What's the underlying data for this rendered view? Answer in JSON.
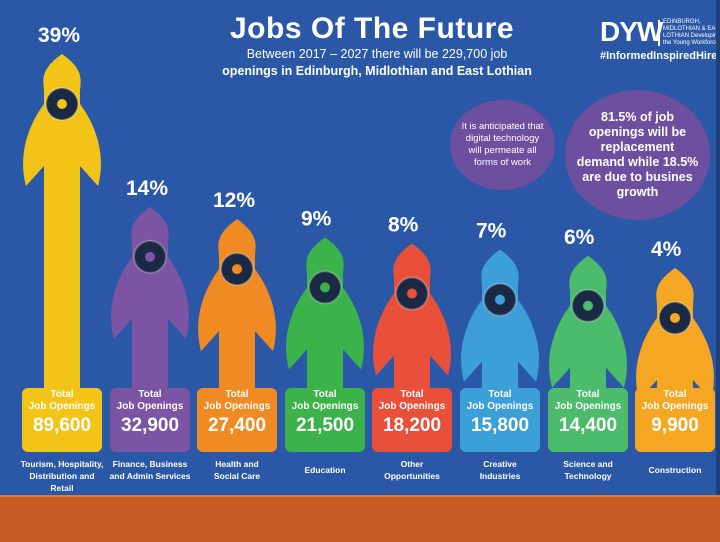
{
  "header": {
    "title": "Jobs Of The Future",
    "subtitle_line1": "Between 2017 – 2027 there will be 229,700 job",
    "subtitle_line2": "openings in Edinburgh, Midlothian and East Lothian"
  },
  "logo": {
    "mark": "DYW",
    "small_text": "EDINBURGH, MIDLOTHIAN & EAST LOTHIAN Developing the Young Workforce",
    "hashtag": "#InformedInspiredHired"
  },
  "callouts": {
    "digital": "It is anticipated that digital technology will permeate all forms of work",
    "replacement": "81.5% of job openings will be replacement demand while 18.5% are due to busines growth"
  },
  "box_caption_line1": "Total",
  "box_caption_line2": "Job Openings",
  "chart_data": {
    "type": "bar",
    "title": "Jobs Of The Future",
    "categories": [
      "Tourism, Hospitality, Distribution and Retail",
      "Finance, Business and Admin Services",
      "Health and Social Care",
      "Education",
      "Other Opportunities",
      "Creative Industries",
      "Science and Technology",
      "Construction"
    ],
    "category_lines": [
      [
        "Tourism, Hospitality,",
        "Distribution and Retail"
      ],
      [
        "Finance, Business",
        "and Admin Services"
      ],
      [
        "Health and",
        "Social Care"
      ],
      [
        "Education"
      ],
      [
        "Other",
        "Opportunities"
      ],
      [
        "Creative",
        "Industries"
      ],
      [
        "Science and",
        "Technology"
      ],
      [
        "Construction"
      ]
    ],
    "percent_labels": [
      "39%",
      "14%",
      "12%",
      "9%",
      "8%",
      "7%",
      "6%",
      "4%"
    ],
    "percent_values": [
      39,
      14,
      12,
      9,
      8,
      7,
      6,
      4
    ],
    "job_opening_labels": [
      "89,600",
      "32,900",
      "27,400",
      "21,500",
      "18,200",
      "15,800",
      "14,400",
      "9,900"
    ],
    "job_openings": [
      89600,
      32900,
      27400,
      21500,
      18200,
      15800,
      14400,
      9900
    ],
    "colors": [
      "#f2c418",
      "#7b55a3",
      "#f08a22",
      "#3bb24a",
      "#e8503a",
      "#3d9fd8",
      "#4cbb6c",
      "#f5a623"
    ],
    "icons": [
      "location-pin-icon",
      "bottle-icon",
      "medical-cross-icon",
      "book-icon",
      "infinity-icon",
      "lightbulb-icon",
      "computer-icon",
      "crane-icon"
    ]
  }
}
